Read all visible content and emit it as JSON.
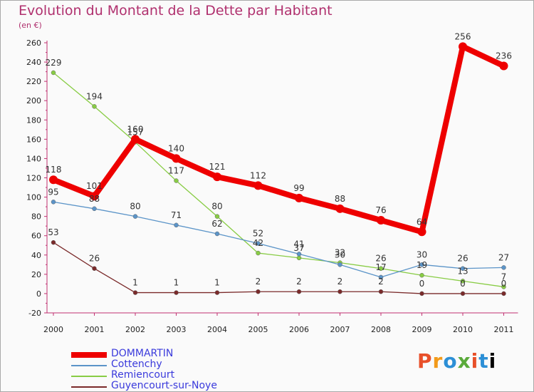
{
  "title": "Evolution du Montant de la Dette par Habitant",
  "subtitle": "(en €)",
  "logo": "Proxiti",
  "chart_data": {
    "type": "line",
    "title": "Evolution du Montant de la Dette par Habitant",
    "ylabel": "(en €)",
    "xlabel": "",
    "x": [
      "2000",
      "2001",
      "2002",
      "2003",
      "2004",
      "2005",
      "2006",
      "2007",
      "2008",
      "2009",
      "2010",
      "2011"
    ],
    "ylim": [
      -20,
      260
    ],
    "yticks": [
      -20,
      0,
      20,
      40,
      60,
      80,
      100,
      120,
      140,
      160,
      180,
      200,
      220,
      240,
      260
    ],
    "grid": false,
    "legend_position": "bottom-left",
    "series": [
      {
        "name": "DOMMARTIN",
        "color": "#ee0000",
        "values": [
          118,
          101,
          160,
          140,
          121,
          112,
          99,
          88,
          76,
          64,
          256,
          236
        ],
        "labels": [
          "118",
          "101",
          "160",
          "140",
          "121",
          "112",
          "99",
          "88",
          "76",
          "64",
          "256",
          "236"
        ]
      },
      {
        "name": "Cottenchy",
        "color": "#5b94c8",
        "values": [
          95,
          88,
          80,
          71,
          62,
          52,
          41,
          30,
          17,
          30,
          26,
          27
        ],
        "labels": [
          "95",
          "88",
          "80",
          "71",
          "62",
          "52",
          "41",
          "30",
          "17",
          "30",
          "26",
          "27"
        ]
      },
      {
        "name": "Remiencourt",
        "color": "#88cc44",
        "values": [
          229,
          194,
          157,
          117,
          80,
          42,
          37,
          32,
          26,
          19,
          13,
          7
        ],
        "labels": [
          "229",
          "194",
          "157",
          "117",
          "80",
          "42",
          "37",
          "32",
          "26",
          "19",
          "13",
          "7"
        ]
      },
      {
        "name": "Guyencourt-sur-Noye",
        "color": "#7a2a2a",
        "values": [
          53,
          26,
          1,
          1,
          1,
          2,
          2,
          2,
          2,
          0,
          0,
          0
        ],
        "labels": [
          "53",
          "26",
          "1",
          "1",
          "1",
          "2",
          "2",
          "2",
          "2",
          "0",
          "0",
          "0"
        ]
      }
    ]
  }
}
